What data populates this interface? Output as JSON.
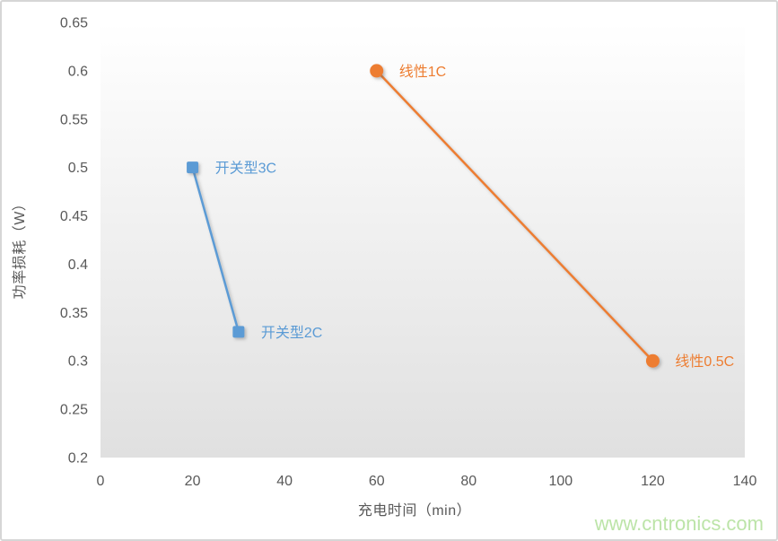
{
  "watermark": "www.cntronics.com",
  "colors": {
    "series_switching": "#5B9BD5",
    "series_linear": "#ED7D31",
    "tick_text": "#595959",
    "axis_title_text": "#595959",
    "plot_gradient_top": "#ffffff",
    "plot_gradient_bottom": "#e0e0e0",
    "canvas_border": "#d6d6d6",
    "watermark_green": "#bce4a8"
  },
  "chart_data": {
    "type": "line",
    "title": "",
    "xlabel": "充电时间（min）",
    "ylabel": "功率损耗（W）",
    "xlim": [
      0,
      140
    ],
    "ylim": [
      0.2,
      0.65
    ],
    "x_ticks": [
      0,
      20,
      40,
      60,
      80,
      100,
      120,
      140
    ],
    "y_ticks": [
      0.65,
      0.6,
      0.55,
      0.5,
      0.45,
      0.4,
      0.35,
      0.3,
      0.25,
      0.2
    ],
    "y_tick_labels": [
      "0.65",
      "0.6",
      "0.55",
      "0.5",
      "0.45",
      "0.4",
      "0.35",
      "0.3",
      "0.25",
      "0.2"
    ],
    "grid": false,
    "legend_position": "none",
    "plot_background": "vertical gradient white to light gray",
    "series": [
      {
        "name": "开关型",
        "color": "#5B9BD5",
        "marker": "square",
        "points": [
          {
            "x": 20,
            "y": 0.5,
            "label": "开关型3C"
          },
          {
            "x": 30,
            "y": 0.33,
            "label": "开关型2C"
          }
        ]
      },
      {
        "name": "线性",
        "color": "#ED7D31",
        "marker": "circle",
        "points": [
          {
            "x": 60,
            "y": 0.6,
            "label": "线性1C"
          },
          {
            "x": 120,
            "y": 0.3,
            "label": "线性0.5C"
          }
        ]
      }
    ]
  }
}
